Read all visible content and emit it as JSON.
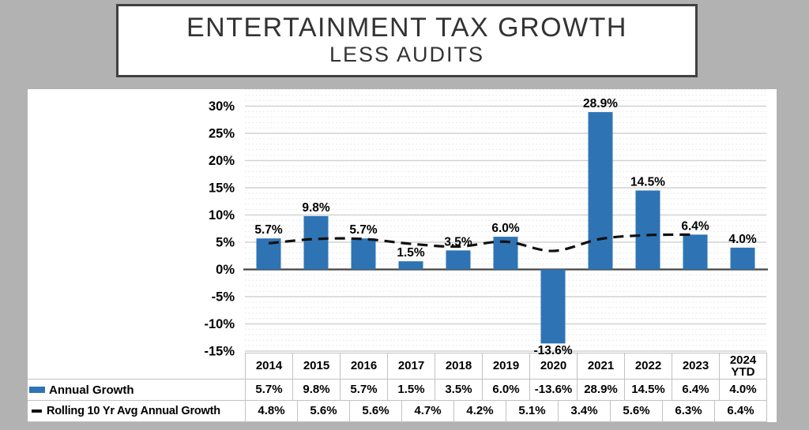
{
  "title": {
    "line1": "ENTERTAINMENT TAX GROWTH",
    "line2": "LESS AUDITS"
  },
  "chart_data": {
    "type": "bar",
    "categories": [
      "2014",
      "2015",
      "2016",
      "2017",
      "2018",
      "2019",
      "2020",
      "2021",
      "2022",
      "2023",
      "2024 YTD"
    ],
    "series": [
      {
        "name": "Annual Growth",
        "type": "bar",
        "color": "#2E74B5",
        "values": [
          5.7,
          9.8,
          5.7,
          1.5,
          3.5,
          6.0,
          -13.6,
          28.9,
          14.5,
          6.4,
          4.0
        ],
        "labels": [
          "5.7%",
          "9.8%",
          "5.7%",
          "1.5%",
          "3.5%",
          "6.0%",
          "-13.6%",
          "28.9%",
          "14.5%",
          "6.4%",
          "4.0%"
        ]
      },
      {
        "name": "Rolling 10 Yr Avg Annual Growth",
        "type": "line",
        "style": "dashed",
        "color": "#111111",
        "x_categories": [
          "2014",
          "2015",
          "2016",
          "2017",
          "2018",
          "2019",
          "2020",
          "2021",
          "2022",
          "2023"
        ],
        "values": [
          4.8,
          5.6,
          5.6,
          4.7,
          4.2,
          5.1,
          3.4,
          5.6,
          6.3,
          6.4
        ],
        "labels": [
          "4.8%",
          "5.6%",
          "5.6%",
          "4.7%",
          "4.2%",
          "5.1%",
          "3.4%",
          "5.6%",
          "6.3%",
          "6.4%"
        ]
      }
    ],
    "ylim": [
      -15,
      33
    ],
    "yticks": [
      {
        "v": 30,
        "label": "30%"
      },
      {
        "v": 25,
        "label": "25%"
      },
      {
        "v": 20,
        "label": "20%"
      },
      {
        "v": 15,
        "label": "15%"
      },
      {
        "v": 10,
        "label": "10%"
      },
      {
        "v": 5,
        "label": "5%"
      },
      {
        "v": 0,
        "label": "0%"
      },
      {
        "v": -5,
        "label": "-5%"
      },
      {
        "v": -10,
        "label": "-10%"
      },
      {
        "v": -15,
        "label": "-15%"
      }
    ],
    "grid": "major 5% solid, minor 1% dotted",
    "legend_position": "bottom-left data table"
  },
  "table": {
    "header_cells": [
      [
        "2014"
      ],
      [
        "2015"
      ],
      [
        "2016"
      ],
      [
        "2017"
      ],
      [
        "2018"
      ],
      [
        "2019"
      ],
      [
        "2020"
      ],
      [
        "2021"
      ],
      [
        "2022"
      ],
      [
        "2023"
      ],
      [
        "2024",
        "YTD"
      ]
    ]
  },
  "colors": {
    "bar": "#2E74B5",
    "line": "#111111",
    "background": "#b2b2b2",
    "panel": "#ffffff",
    "grid_major": "#d2d2d2",
    "grid_minor": "#e6e6e6",
    "axis_zero": "#454545",
    "table_border": "#c2c2c2",
    "title_border": "#414141",
    "text": "#000000"
  }
}
